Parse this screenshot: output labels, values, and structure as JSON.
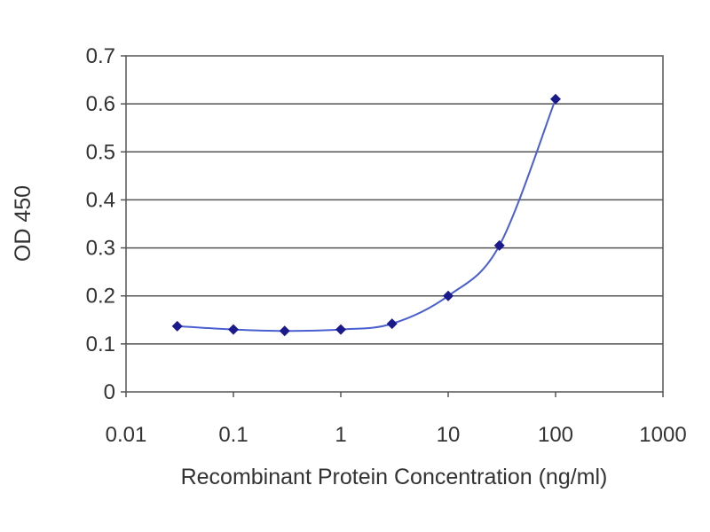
{
  "chart_data": {
    "type": "line",
    "title": "",
    "xlabel": "Recombinant Protein Concentration (ng/ml)",
    "ylabel": "OD 450",
    "x_scale": "log",
    "xlim": [
      0.01,
      1000
    ],
    "ylim": [
      0,
      0.7
    ],
    "x_ticks": [
      "0.01",
      "0.1",
      "1",
      "10",
      "100",
      "1000"
    ],
    "y_ticks": [
      "0",
      "0.1",
      "0.2",
      "0.3",
      "0.4",
      "0.5",
      "0.6",
      "0.7"
    ],
    "grid": "horizontal",
    "legend": "none",
    "series": [
      {
        "x": [
          0.03,
          0.1,
          0.3,
          1,
          3,
          10,
          30,
          100
        ],
        "y": [
          0.137,
          0.13,
          0.127,
          0.13,
          0.142,
          0.2,
          0.305,
          0.61
        ],
        "color": "#1a1a8c",
        "line_color": "#4a5fd0"
      }
    ]
  }
}
